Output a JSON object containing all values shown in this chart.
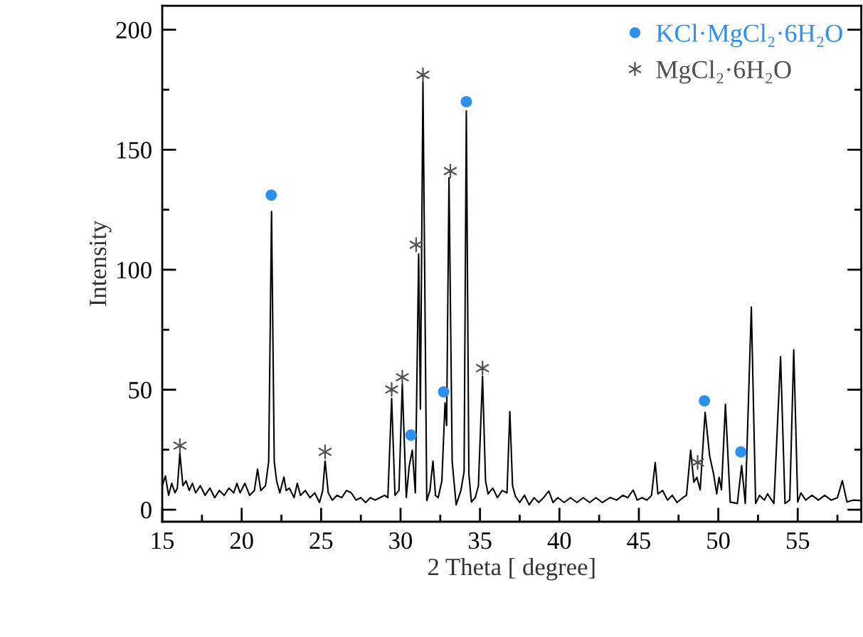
{
  "chart_data": {
    "type": "line",
    "xlabel": "2 Theta [ degree]",
    "ylabel": "Intensity",
    "xlim": [
      15,
      59
    ],
    "ylim": [
      -5,
      210
    ],
    "xticks": [
      15,
      {
        "value": 17.5,
        "label": null
      },
      20,
      {
        "value": 22.5,
        "label": null
      },
      25,
      {
        "value": 27.5,
        "label": null
      },
      30,
      {
        "value": 32.5,
        "label": null
      },
      35,
      {
        "value": 37.5,
        "label": null
      },
      40,
      {
        "value": 42.5,
        "label": null
      },
      45,
      {
        "value": 47.5,
        "label": null
      },
      50,
      {
        "value": 52.5,
        "label": null
      },
      55,
      {
        "value": 57.5,
        "label": null
      }
    ],
    "yticks": [
      0,
      {
        "value": 25,
        "label": null
      },
      50,
      {
        "value": 75,
        "label": null
      },
      100,
      {
        "value": 125,
        "label": null
      },
      150,
      {
        "value": 175,
        "label": null
      },
      200
    ],
    "grid": false,
    "legend": "top right",
    "series": [
      {
        "color": "#000000",
        "marker": "none",
        "line_style": "solid",
        "x": [
          15.0,
          15.2,
          15.4,
          15.6,
          15.8,
          15.95,
          16.11,
          16.3,
          16.5,
          16.7,
          16.9,
          17.1,
          17.4,
          17.7,
          18.0,
          18.3,
          18.6,
          18.9,
          19.2,
          19.5,
          19.7,
          19.9,
          20.2,
          20.5,
          20.8,
          21.0,
          21.2,
          21.5,
          21.7,
          21.88,
          22.05,
          22.2,
          22.4,
          22.66,
          22.8,
          23.0,
          23.3,
          23.5,
          23.7,
          24.0,
          24.3,
          24.6,
          24.9,
          25.1,
          25.25,
          25.45,
          25.7,
          26.0,
          26.3,
          26.6,
          26.9,
          27.2,
          27.5,
          27.8,
          28.1,
          28.4,
          28.7,
          29.0,
          29.2,
          29.44,
          29.65,
          29.9,
          30.11,
          30.36,
          30.55,
          30.74,
          30.93,
          31.14,
          31.25,
          31.41,
          31.65,
          31.85,
          32.04,
          32.2,
          32.37,
          32.6,
          32.8,
          32.9,
          33.05,
          33.25,
          33.5,
          33.8,
          34.0,
          34.14,
          34.3,
          34.46,
          34.7,
          34.9,
          35.16,
          35.35,
          35.51,
          35.8,
          36.1,
          36.4,
          36.7,
          36.88,
          37.05,
          37.23,
          37.5,
          37.8,
          38.1,
          38.4,
          38.7,
          39.0,
          39.33,
          39.6,
          39.9,
          40.3,
          40.7,
          41.1,
          41.5,
          41.9,
          42.3,
          42.7,
          43.2,
          43.6,
          44.0,
          44.3,
          44.64,
          44.9,
          45.2,
          45.5,
          45.8,
          46.03,
          46.2,
          46.5,
          46.8,
          47.1,
          47.4,
          47.79,
          48.0,
          48.26,
          48.46,
          48.65,
          48.86,
          49.17,
          49.46,
          49.7,
          49.9,
          50.05,
          50.2,
          50.45,
          50.75,
          51.2,
          51.47,
          51.7,
          52.08,
          52.35,
          52.6,
          52.9,
          53.1,
          53.5,
          53.92,
          54.2,
          54.5,
          54.75,
          55.0,
          55.2,
          55.5,
          55.9,
          56.3,
          56.7,
          57.1,
          57.5,
          57.81,
          58.1,
          58.5,
          58.97
        ],
        "values": [
          10,
          14,
          6,
          11,
          7,
          9,
          23.5,
          10,
          12,
          8,
          11,
          7,
          10,
          6,
          9,
          5,
          8,
          6,
          9,
          7,
          11,
          7,
          11,
          6,
          8,
          16.9,
          8,
          10,
          20,
          124.3,
          20,
          12,
          7,
          13.6,
          8,
          9,
          5,
          11,
          6,
          8,
          5,
          7,
          3,
          8,
          20.3,
          7,
          4,
          6,
          5,
          8,
          7,
          4,
          5,
          3,
          5,
          4,
          5,
          6,
          5,
          46.3,
          6,
          8,
          52.3,
          5.1,
          18.4,
          24.8,
          7,
          106.6,
          41.9,
          178.3,
          3.8,
          8,
          20.3,
          6,
          5,
          12,
          44.5,
          35.1,
          138.3,
          20,
          2,
          8,
          15.9,
          166.2,
          15,
          3.2,
          5,
          10,
          55.6,
          12,
          6.6,
          9,
          5,
          8,
          7,
          40.9,
          10,
          5.6,
          3,
          6,
          2,
          5,
          3,
          5,
          7.8,
          3,
          5,
          3,
          5,
          3,
          5,
          3,
          5,
          3,
          5.1,
          4,
          6,
          5,
          8.2,
          4,
          5,
          4,
          6,
          19.7,
          6.6,
          8,
          4,
          6,
          3,
          5.1,
          6,
          24.8,
          11.5,
          13.5,
          8.3,
          40.6,
          22.2,
          15,
          6.6,
          13.5,
          8.3,
          43.9,
          3.2,
          2.6,
          18.4,
          2.6,
          84.4,
          2.6,
          6,
          4,
          6.6,
          2.6,
          63.8,
          2.6,
          4,
          66.6,
          3.2,
          7,
          4,
          6,
          4,
          6,
          4,
          5,
          12.1,
          3.2,
          4,
          3.8
        ]
      },
      {
        "type": "scatter",
        "name": "KCl·MgCl₂·6H₂O",
        "color": "#2f8fef",
        "marker": "circle",
        "x": [
          21.86,
          30.65,
          32.71,
          34.14,
          49.13,
          51.42
        ],
        "values": [
          131.1,
          31.1,
          49.1,
          170,
          45.4,
          24.1
        ]
      },
      {
        "type": "scatter",
        "name": "MgCl₂·6H₂O",
        "color": "#505050",
        "marker": "cross",
        "x": [
          16.11,
          25.25,
          29.44,
          30.11,
          30.98,
          31.41,
          33.13,
          35.16,
          48.7
        ],
        "values": [
          26.7,
          24.1,
          50.1,
          55.2,
          110.4,
          181.2,
          141.1,
          59,
          19.7
        ]
      }
    ]
  }
}
